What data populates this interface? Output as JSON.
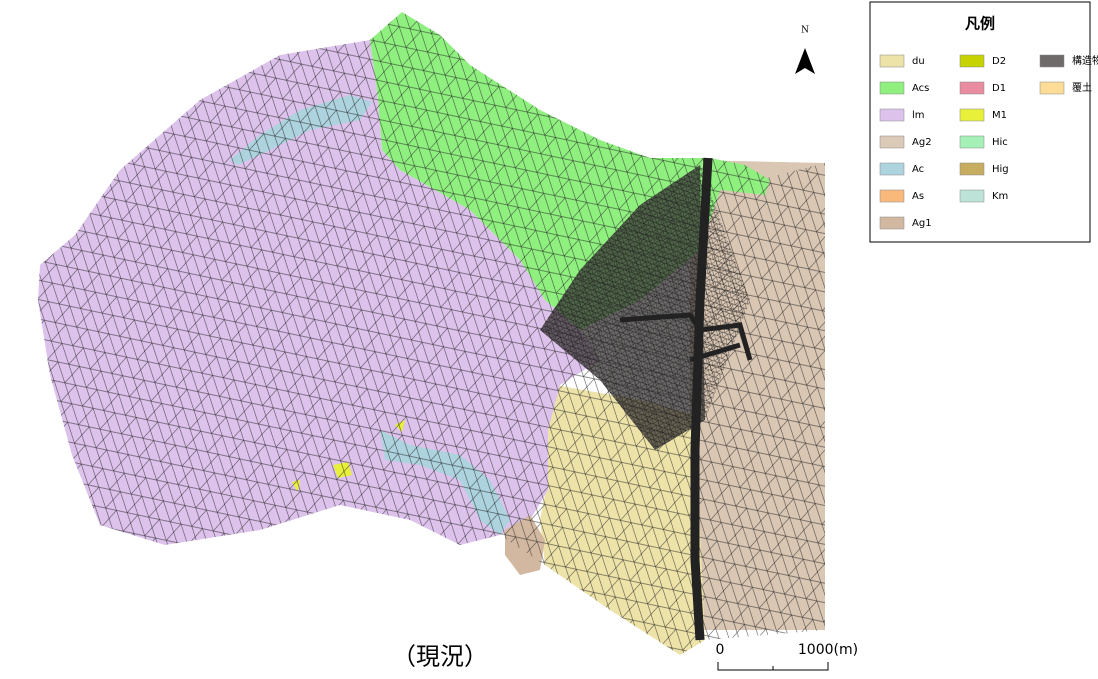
{
  "map": {
    "north": "N",
    "caption": "（現況）",
    "scale": {
      "start": "0",
      "end": "1000(m)"
    },
    "legend": {
      "title": "凡例",
      "columns": [
        [
          {
            "label": "du",
            "color": "#ede3a8"
          },
          {
            "label": "Acs",
            "color": "#8ff07f"
          },
          {
            "label": "lm",
            "color": "#ddc2ec"
          },
          {
            "label": "Ag2",
            "color": "#dccab8"
          },
          {
            "label": "Ac",
            "color": "#add3df"
          },
          {
            "label": "As",
            "color": "#f8b97a"
          },
          {
            "label": "Ag1",
            "color": "#d2b8a0"
          }
        ],
        [
          {
            "label": "D2",
            "color": "#c6d300"
          },
          {
            "label": "D1",
            "color": "#ea8ca0"
          },
          {
            "label": "M1",
            "color": "#e8f03a"
          },
          {
            "label": "Hic",
            "color": "#a5f0b7"
          },
          {
            "label": "Hig",
            "color": "#c7ad5f"
          },
          {
            "label": "Km",
            "color": "#bde3d8"
          }
        ],
        [
          {
            "label": "構造物",
            "color": "#6f6a6a"
          },
          {
            "label": "覆土",
            "color": "#fddc98"
          }
        ]
      ]
    }
  }
}
